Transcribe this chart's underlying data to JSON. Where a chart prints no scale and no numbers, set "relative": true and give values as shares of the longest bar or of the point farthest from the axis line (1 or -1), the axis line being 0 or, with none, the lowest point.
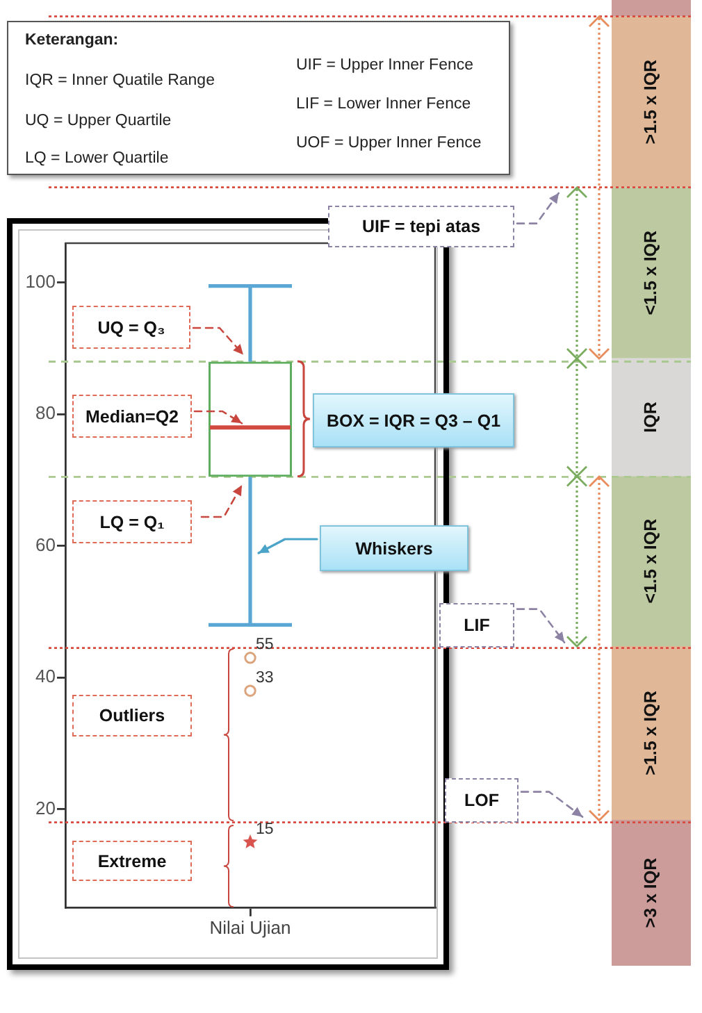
{
  "chart_data": [
    {
      "type": "box",
      "categories": [
        "Nilai Ujian"
      ],
      "series": [
        {
          "type": "box",
          "color": "#5fae5f",
          "boxes": [
            {
              "low": 48,
              "q1": 70.5,
              "median": 78,
              "q3": 88,
              "high": 99.5,
              "outliers": [
                43,
                38
              ]
            }
          ]
        },
        {
          "type": "scatter",
          "x": [
            "Nilai Ujian"
          ],
          "values": [
            15
          ],
          "marker": "star",
          "color": "#d9534f"
        }
      ],
      "ylim": [
        5,
        106
      ],
      "yticks": [
        20,
        40,
        60,
        80,
        100
      ],
      "ref_lines": [
        {
          "axis": "y",
          "value": 44.5,
          "label": "LIF",
          "color": "#d84a3e",
          "line_style": "dotted"
        },
        {
          "axis": "y",
          "value": 18,
          "label": "LOF",
          "color": "#d84a3e",
          "line_style": "dotted"
        },
        {
          "axis": "y",
          "value": 88,
          "color": "#a9c98f",
          "line_style": "dashed"
        },
        {
          "axis": "y",
          "value": 70.5,
          "color": "#a9c98f",
          "line_style": "dashed"
        }
      ],
      "annotations": [
        "Keterangan:",
        "IQR = Inner Quatile Range",
        "UQ = Upper Quartile",
        "LQ = Lower Quartile",
        "UIF = Upper Inner Fence",
        "LIF = Lower Inner Fence",
        "UOF = Upper Inner Fence",
        "UQ = Q₃",
        "Median=Q2",
        "LQ = Q₁",
        "BOX = IQR = Q3 – Q1",
        "Whiskers",
        "Outliers",
        "Extreme",
        "55",
        "33",
        "15"
      ]
    },
    {
      "type": "bar",
      "stacked": true,
      "relative": true,
      "categories": [
        null
      ],
      "series": [
        {
          "name": ">3 x IQR",
          "color": "#cc9c9a",
          "values": [
            0.151
          ]
        },
        {
          "name": ">1.5 x IQR",
          "color": "#e0b898",
          "values": [
            0.18
          ]
        },
        {
          "name": "<1.5 x IQR",
          "color": "#bdc9a1",
          "values": [
            0.176
          ]
        },
        {
          "name": "IQR",
          "color": "#d9d8d6",
          "values": [
            0.122
          ]
        },
        {
          "name": "<1.5 x IQR",
          "color": "#bdc9a1",
          "values": [
            0.177
          ]
        },
        {
          "name": ">1.5 x IQR",
          "color": "#e0b898",
          "values": [
            0.177
          ]
        },
        {
          "color": "#cc9c9a",
          "values": [
            0.017
          ]
        }
      ],
      "ref_lines": [
        {
          "axis": "y",
          "value": 0.806,
          "label": "UIF = tepi atas",
          "color": "#d84a3e",
          "line_style": "dotted"
        },
        {
          "axis": "y",
          "value": 0.983,
          "color": "#d84a3e",
          "line_style": "dotted"
        }
      ]
    }
  ]
}
